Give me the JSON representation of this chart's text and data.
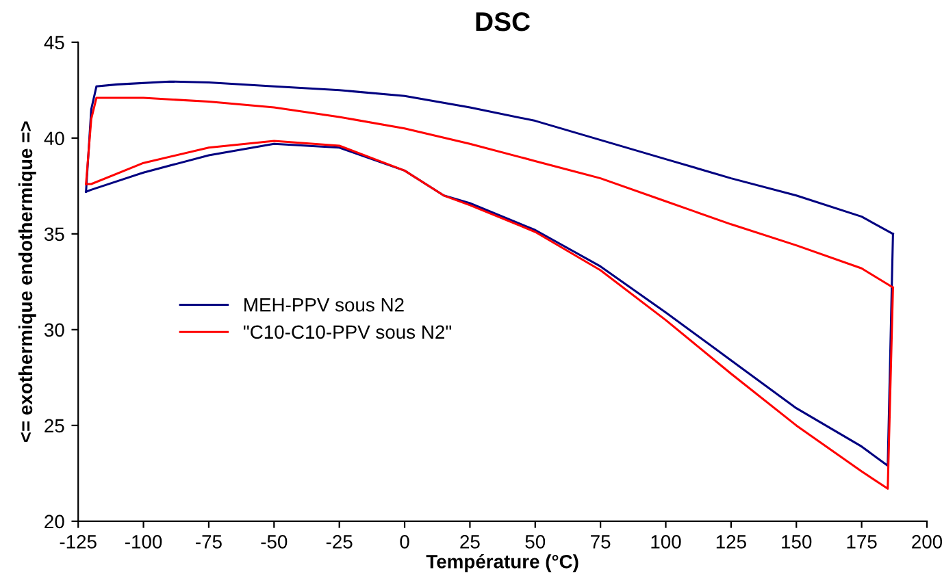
{
  "chart_data": {
    "type": "line",
    "title": "DSC",
    "xlabel": "Température (°C)",
    "ylabel": "<= exothermique endothermique =>",
    "xlim": [
      -125,
      200
    ],
    "xticks": [
      -125,
      -100,
      -75,
      -50,
      -25,
      0,
      25,
      50,
      75,
      100,
      125,
      150,
      175,
      200
    ],
    "ylim": [
      20,
      45
    ],
    "yticks": [
      20,
      25,
      30,
      35,
      40,
      45
    ],
    "grid": false,
    "legend": "left",
    "marker": "none",
    "line_style": "solid",
    "series": [
      {
        "name": "MEH-PPV sous N2",
        "color": "#000080",
        "x": [
          -122,
          -120,
          -100,
          -75,
          -50,
          -25,
          0,
          15,
          25,
          50,
          75,
          100,
          125,
          150,
          175,
          185,
          187
        ],
        "values": [
          37.2,
          37.3,
          38.2,
          39.1,
          39.7,
          39.5,
          38.3,
          37.0,
          36.6,
          35.2,
          33.3,
          30.9,
          28.4,
          25.9,
          23.9,
          22.9,
          35.0
        ]
      },
      {
        "color": "#000080",
        "x": [
          -122,
          -120,
          -118,
          -110,
          -90,
          -75,
          -50,
          -25,
          0,
          25,
          50,
          75,
          100,
          125,
          150,
          175,
          187
        ],
        "values": [
          37.2,
          41.5,
          42.7,
          42.8,
          42.95,
          42.9,
          42.7,
          42.5,
          42.2,
          41.6,
          40.9,
          39.9,
          38.9,
          37.9,
          37.0,
          35.9,
          35.0
        ]
      },
      {
        "name": "\"C10-C10-PPV sous N2\"",
        "color": "#ff0000",
        "x": [
          -122,
          -120,
          -100,
          -75,
          -50,
          -25,
          0,
          15,
          25,
          50,
          75,
          100,
          125,
          150,
          175,
          185,
          187
        ],
        "values": [
          37.6,
          37.6,
          38.7,
          39.5,
          39.85,
          39.6,
          38.3,
          37.0,
          36.5,
          35.1,
          33.1,
          30.5,
          27.7,
          25.0,
          22.6,
          21.7,
          32.2
        ]
      },
      {
        "color": "#ff0000",
        "x": [
          -122,
          -120,
          -118,
          -100,
          -75,
          -50,
          -25,
          0,
          25,
          50,
          75,
          100,
          125,
          150,
          175,
          187
        ],
        "values": [
          37.6,
          41.0,
          42.1,
          42.1,
          41.9,
          41.6,
          41.1,
          40.5,
          39.7,
          38.8,
          37.9,
          36.7,
          35.5,
          34.4,
          33.2,
          32.2
        ]
      }
    ]
  }
}
